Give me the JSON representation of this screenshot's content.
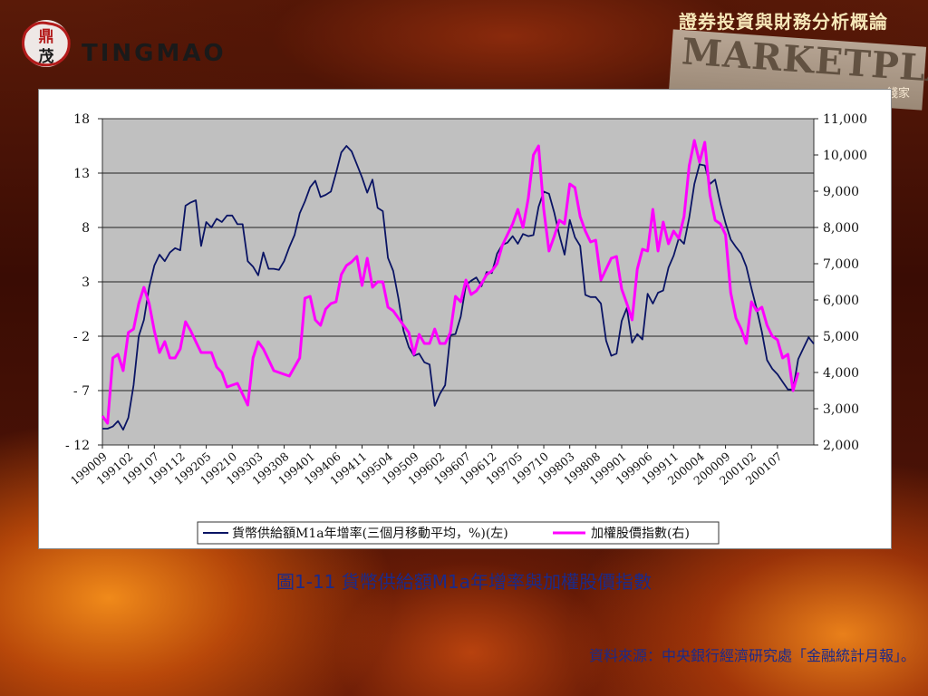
{
  "header": {
    "title": "證券投資與財務分析概論"
  },
  "logo": {
    "text": "TINGMAO",
    "seal_text": "鼎茂"
  },
  "background": {
    "banner_word": "MARKETPLACE",
    "side_word": "錢家"
  },
  "caption": "圖1-11 貨幣供給額M1a年增率與加權股價指數",
  "source": "資料來源：中央銀行經濟研究處「金融統計月報」。",
  "colors": {
    "m1a": "#0a1464",
    "taiex": "#ff00ff",
    "plot_bg": "#c0c0c0"
  },
  "chart_data": {
    "type": "line",
    "title": "",
    "xlabel": "",
    "ylabel": "",
    "ylim": [
      -12,
      18
    ],
    "y2lim": [
      2000,
      11000
    ],
    "yticks": [
      "18",
      "13",
      "8",
      "3",
      "- 2",
      "- 7",
      "- 12"
    ],
    "y2ticks": [
      "11,000",
      "10,000",
      "9,000",
      "8,000",
      "7,000",
      "6,000",
      "5,000",
      "4,000",
      "3,000",
      "2,000"
    ],
    "xticks": [
      "199009",
      "199102",
      "199107",
      "199112",
      "199205",
      "199210",
      "199303",
      "199308",
      "199401",
      "199406",
      "199411",
      "199504",
      "199509",
      "199602",
      "199607",
      "199612",
      "199705",
      "199710",
      "199803",
      "199808",
      "199901",
      "199906",
      "199911",
      "200004",
      "200009",
      "200102",
      "200107"
    ],
    "legend_placement": "bottom",
    "series": [
      {
        "name": "貨幣供給額M1a年增率(三個月移動平均，%)(左)",
        "axis": "left",
        "values": [
          -10.5,
          -10.5,
          -10.3,
          -9.8,
          -10.6,
          -9.5,
          -6.5,
          -2.0,
          -0.5,
          2.5,
          4.5,
          5.5,
          4.9,
          5.7,
          6.1,
          5.9,
          10.0,
          10.3,
          10.5,
          6.3,
          8.5,
          8.0,
          8.8,
          8.5,
          9.1,
          9.1,
          8.3,
          8.3,
          4.9,
          4.4,
          3.6,
          5.7,
          4.2,
          4.2,
          4.1,
          4.9,
          6.2,
          7.3,
          9.3,
          10.4,
          11.7,
          12.3,
          10.8,
          11.0,
          11.3,
          13.0,
          14.9,
          15.5,
          15.0,
          13.8,
          12.6,
          11.2,
          12.4,
          9.8,
          9.5,
          5.2,
          4.0,
          1.5,
          -1.5,
          -3.0,
          -3.8,
          -3.6,
          -4.4,
          -4.6,
          -8.4,
          -7.3,
          -6.5,
          -1.9,
          -1.8,
          -0.2,
          2.7,
          3.1,
          3.4,
          2.6,
          3.9,
          3.8,
          5.6,
          6.4,
          6.6,
          7.2,
          6.5,
          7.4,
          7.2,
          7.3,
          9.9,
          11.3,
          11.1,
          9.4,
          7.3,
          5.5,
          8.7,
          7.1,
          6.3,
          1.8,
          1.6,
          1.6,
          1.0,
          -2.4,
          -3.8,
          -3.6,
          -0.6,
          0.6,
          -2.6,
          -1.8,
          -2.3,
          1.9,
          1.0,
          2.0,
          2.2,
          4.3,
          5.4,
          7.0,
          6.5,
          8.9,
          12.0,
          13.8,
          13.7,
          12.0,
          12.4,
          10.2,
          8.4,
          6.9,
          6.2,
          5.6,
          4.4,
          2.4,
          0.5,
          -1.6,
          -4.2,
          -5.0,
          -5.5,
          -6.2,
          -6.9,
          -6.9,
          -4.1,
          -3.1,
          -2.1,
          -2.7
        ]
      },
      {
        "name": "加權股價指數(右)",
        "axis": "right",
        "values": [
          2800,
          2600,
          4400,
          4500,
          4050,
          5100,
          5200,
          5900,
          6350,
          5900,
          5150,
          4550,
          4850,
          4400,
          4400,
          4650,
          5400,
          5150,
          4850,
          4550,
          4550,
          4550,
          4150,
          4000,
          3600,
          3650,
          3700,
          3400,
          3100,
          4400,
          4850,
          4650,
          4350,
          4050,
          4000,
          3950,
          3900,
          4150,
          4400,
          6050,
          6100,
          5450,
          5300,
          5750,
          5900,
          5950,
          6700,
          6950,
          7050,
          7200,
          6400,
          7150,
          6350,
          6500,
          6500,
          5800,
          5700,
          5500,
          5300,
          5100,
          4500,
          5050,
          4800,
          4800,
          5200,
          4800,
          4800,
          5100,
          6100,
          5950,
          6550,
          6150,
          6250,
          6450,
          6700,
          6800,
          7000,
          7500,
          7800,
          8100,
          8500,
          8000,
          8800,
          10000,
          10250,
          8500,
          7350,
          7750,
          8200,
          8100,
          9200,
          9100,
          8300,
          7900,
          7600,
          7650,
          6550,
          6850,
          7150,
          7200,
          6300,
          5900,
          5450,
          6850,
          7400,
          7350,
          8500,
          7350,
          8150,
          7550,
          7900,
          7700,
          8300,
          9700,
          10400,
          9800,
          10350,
          8900,
          8200,
          8100,
          7800,
          6200,
          5500,
          5200,
          4800,
          5950,
          5700,
          5800,
          5300,
          5000,
          4900,
          4400,
          4500,
          3500,
          4000
        ]
      }
    ]
  }
}
